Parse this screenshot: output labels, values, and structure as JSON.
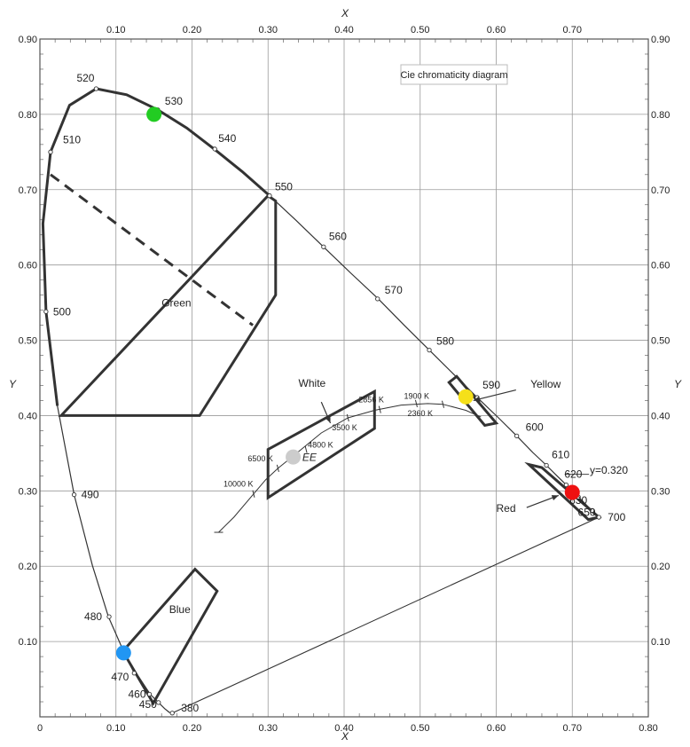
{
  "chart_data": {
    "type": "scatter",
    "title": "Cie chromaticity diagram",
    "xlabel": "X",
    "ylabel": "Y",
    "xlim": [
      0,
      0.8
    ],
    "ylim": [
      0,
      0.9
    ],
    "grid": true,
    "x_ticks": [
      {
        "value": 0,
        "label": "0"
      },
      {
        "value": 0.1,
        "label": "0.10"
      },
      {
        "value": 0.2,
        "label": "0.20"
      },
      {
        "value": 0.3,
        "label": "0.30"
      },
      {
        "value": 0.4,
        "label": "0.40"
      },
      {
        "value": 0.5,
        "label": "0.50"
      },
      {
        "value": 0.6,
        "label": "0.60"
      },
      {
        "value": 0.7,
        "label": "0.70"
      },
      {
        "value": 0.8,
        "label": "0.80"
      }
    ],
    "x_ticks_top": [
      "0.10",
      "0.20",
      "0.30",
      "0.40",
      "0.50",
      "0.60",
      "0.70"
    ],
    "y_ticks": [
      {
        "value": 0.1,
        "label": "0.10"
      },
      {
        "value": 0.2,
        "label": "0.20"
      },
      {
        "value": 0.3,
        "label": "0.30"
      },
      {
        "value": 0.4,
        "label": "0.40"
      },
      {
        "value": 0.5,
        "label": "0.50"
      },
      {
        "value": 0.6,
        "label": "0.60"
      },
      {
        "value": 0.7,
        "label": "0.70"
      },
      {
        "value": 0.8,
        "label": "0.80"
      },
      {
        "value": 0.9,
        "label": "0.90"
      }
    ],
    "spectral_locus": [
      [
        0.174,
        0.005
      ],
      [
        0.17,
        0.006
      ],
      [
        0.164,
        0.011
      ],
      [
        0.156,
        0.019
      ],
      [
        0.145,
        0.03
      ],
      [
        0.13,
        0.053
      ],
      [
        0.124,
        0.058
      ],
      [
        0.11,
        0.087
      ],
      [
        0.09,
        0.133
      ],
      [
        0.069,
        0.201
      ],
      [
        0.045,
        0.295
      ],
      [
        0.023,
        0.413
      ],
      [
        0.008,
        0.538
      ],
      [
        0.004,
        0.655
      ],
      [
        0.014,
        0.75
      ],
      [
        0.039,
        0.812
      ],
      [
        0.074,
        0.834
      ],
      [
        0.114,
        0.826
      ],
      [
        0.155,
        0.806
      ],
      [
        0.193,
        0.782
      ],
      [
        0.229,
        0.754
      ],
      [
        0.266,
        0.724
      ],
      [
        0.302,
        0.692
      ],
      [
        0.337,
        0.659
      ],
      [
        0.373,
        0.624
      ],
      [
        0.409,
        0.589
      ],
      [
        0.445,
        0.555
      ],
      [
        0.479,
        0.52
      ],
      [
        0.512,
        0.487
      ],
      [
        0.544,
        0.455
      ],
      [
        0.575,
        0.424
      ],
      [
        0.603,
        0.397
      ],
      [
        0.627,
        0.373
      ],
      [
        0.648,
        0.351
      ],
      [
        0.666,
        0.334
      ],
      [
        0.68,
        0.32
      ],
      [
        0.692,
        0.308
      ],
      [
        0.701,
        0.299
      ],
      [
        0.709,
        0.291
      ],
      [
        0.714,
        0.286
      ],
      [
        0.719,
        0.281
      ],
      [
        0.723,
        0.277
      ],
      [
        0.727,
        0.273
      ],
      [
        0.73,
        0.27
      ],
      [
        0.733,
        0.267
      ],
      [
        0.735,
        0.265
      ]
    ],
    "line_of_purples": [
      [
        0.735,
        0.265
      ],
      [
        0.174,
        0.005
      ]
    ],
    "wavelength_labels": [
      {
        "label": "380",
        "x": 0.174,
        "y": 0.005
      },
      {
        "label": "450",
        "x": 0.156,
        "y": 0.019
      },
      {
        "label": "460",
        "x": 0.144,
        "y": 0.03
      },
      {
        "label": "470",
        "x": 0.124,
        "y": 0.058
      },
      {
        "label": "480",
        "x": 0.091,
        "y": 0.133
      },
      {
        "label": "490",
        "x": 0.045,
        "y": 0.295
      },
      {
        "label": "500",
        "x": 0.008,
        "y": 0.538
      },
      {
        "label": "510",
        "x": 0.014,
        "y": 0.75
      },
      {
        "label": "520",
        "x": 0.074,
        "y": 0.834
      },
      {
        "label": "530",
        "x": 0.155,
        "y": 0.806
      },
      {
        "label": "540",
        "x": 0.23,
        "y": 0.754
      },
      {
        "label": "550",
        "x": 0.302,
        "y": 0.692
      },
      {
        "label": "560",
        "x": 0.373,
        "y": 0.624
      },
      {
        "label": "570",
        "x": 0.444,
        "y": 0.555
      },
      {
        "label": "580",
        "x": 0.512,
        "y": 0.487
      },
      {
        "label": "590",
        "x": 0.575,
        "y": 0.424
      },
      {
        "label": "600",
        "x": 0.627,
        "y": 0.373
      },
      {
        "label": "610",
        "x": 0.666,
        "y": 0.334
      },
      {
        "label": "620",
        "x": 0.692,
        "y": 0.308
      },
      {
        "label": "630",
        "x": 0.708,
        "y": 0.292
      },
      {
        "label": "650",
        "x": 0.726,
        "y": 0.274
      },
      {
        "label": "700",
        "x": 0.735,
        "y": 0.265
      }
    ],
    "planckian_locus": [
      [
        0.235,
        0.245
      ],
      [
        0.255,
        0.265
      ],
      [
        0.281,
        0.296
      ],
      [
        0.297,
        0.315
      ],
      [
        0.313,
        0.33
      ],
      [
        0.335,
        0.348
      ],
      [
        0.37,
        0.377
      ],
      [
        0.405,
        0.397
      ],
      [
        0.44,
        0.407
      ],
      [
        0.475,
        0.414
      ],
      [
        0.51,
        0.416
      ],
      [
        0.53,
        0.415
      ],
      [
        0.56,
        0.407
      ],
      [
        0.58,
        0.398
      ]
    ],
    "cct_labels": [
      {
        "label": "10000 K",
        "x": 0.281,
        "y": 0.296
      },
      {
        "label": "6500 K",
        "x": 0.313,
        "y": 0.33
      },
      {
        "label": "4800 K",
        "x": 0.35,
        "y": 0.355
      },
      {
        "label": "3500 K",
        "x": 0.405,
        "y": 0.397
      },
      {
        "label": "2856 K",
        "x": 0.447,
        "y": 0.408
      },
      {
        "label": "2360 K",
        "x": 0.495,
        "y": 0.416
      },
      {
        "label": "1900 K",
        "x": 0.53,
        "y": 0.415
      }
    ],
    "regions": [
      {
        "name": "Green",
        "polygon": [
          [
            0.028,
            0.4
          ],
          [
            0.21,
            0.4
          ],
          [
            0.31,
            0.56
          ],
          [
            0.31,
            0.685
          ],
          [
            0.3,
            0.692
          ],
          [
            0.028,
            0.4
          ]
        ]
      },
      {
        "name": "Blue",
        "polygon": [
          [
            0.109,
            0.087
          ],
          [
            0.204,
            0.196
          ],
          [
            0.233,
            0.167
          ],
          [
            0.149,
            0.018
          ]
        ]
      },
      {
        "name": "White",
        "polygon": [
          [
            0.3,
            0.355
          ],
          [
            0.44,
            0.432
          ],
          [
            0.44,
            0.383
          ],
          [
            0.3,
            0.291
          ]
        ]
      },
      {
        "name": "Yellow",
        "polygon": [
          [
            0.538,
            0.444
          ],
          [
            0.548,
            0.452
          ],
          [
            0.6,
            0.39
          ],
          [
            0.585,
            0.387
          ]
        ]
      },
      {
        "name": "Red",
        "polygon": [
          [
            0.643,
            0.335
          ],
          [
            0.66,
            0.331
          ],
          [
            0.735,
            0.265
          ],
          [
            0.721,
            0.262
          ]
        ]
      }
    ],
    "green_dashed_line": [
      [
        0.014,
        0.72
      ],
      [
        0.28,
        0.52
      ]
    ],
    "colored_points": [
      {
        "name": "530 green",
        "x": 0.15,
        "y": 0.8,
        "color": "#22cc22"
      },
      {
        "name": "yellow",
        "x": 0.56,
        "y": 0.425,
        "color": "#f5e01a"
      },
      {
        "name": "red",
        "x": 0.7,
        "y": 0.298,
        "color": "#ee1111"
      },
      {
        "name": "blue",
        "x": 0.11,
        "y": 0.085,
        "color": "#2196f3"
      },
      {
        "name": "EE",
        "x": 0.333,
        "y": 0.345,
        "color": "#cccccc"
      }
    ],
    "annotations": [
      {
        "text": "Green",
        "x": 0.16,
        "y": 0.545
      },
      {
        "text": "Blue",
        "x": 0.17,
        "y": 0.138
      },
      {
        "text": "White",
        "x": 0.34,
        "y": 0.438
      },
      {
        "text": "Yellow",
        "x": 0.645,
        "y": 0.437
      },
      {
        "text": "Red",
        "x": 0.6,
        "y": 0.272
      },
      {
        "text": "EE",
        "x": 0.345,
        "y": 0.34
      },
      {
        "text": "y=0.320",
        "x": 0.723,
        "y": 0.323
      }
    ],
    "arrows": [
      {
        "from": [
          0.37,
          0.418
        ],
        "to": [
          0.382,
          0.39
        ]
      },
      {
        "from": [
          0.626,
          0.434
        ],
        "to": [
          0.57,
          0.42
        ]
      },
      {
        "from": [
          0.64,
          0.278
        ],
        "to": [
          0.682,
          0.294
        ]
      }
    ],
    "reference_line": {
      "x1": 0.69,
      "x2": 0.722,
      "y": 0.322
    }
  }
}
